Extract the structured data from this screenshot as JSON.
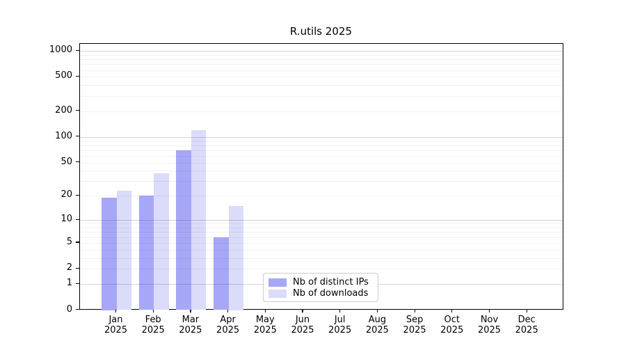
{
  "chart_data": {
    "type": "bar",
    "title": "R.utils 2025",
    "year_label": "2025",
    "months": [
      "Jan",
      "Feb",
      "Mar",
      "Apr",
      "May",
      "Jun",
      "Jul",
      "Aug",
      "Sep",
      "Oct",
      "Nov",
      "Dec"
    ],
    "series": [
      {
        "name": "Nb of distinct IPs",
        "color": "#a7a7f7",
        "values": [
          19,
          20,
          70,
          6,
          0,
          0,
          0,
          0,
          0,
          0,
          0,
          0
        ]
      },
      {
        "name": "Nb of downloads",
        "color": "#dbdbfa",
        "values": [
          23,
          37,
          120,
          15,
          0,
          0,
          0,
          0,
          0,
          0,
          0,
          0
        ]
      }
    ],
    "y_scale": "log1p",
    "y_ticks": [
      0,
      1,
      2,
      5,
      10,
      20,
      50,
      100,
      200,
      500,
      1000
    ],
    "y_minor_gridlines": [
      2,
      3,
      4,
      5,
      6,
      7,
      8,
      9,
      20,
      30,
      40,
      50,
      60,
      70,
      80,
      90,
      200,
      300,
      400,
      500,
      600,
      700,
      800,
      900
    ],
    "y_major_gridlines": [
      1,
      10,
      100,
      1000
    ],
    "ylim": [
      0,
      1200
    ],
    "grid": true,
    "legend_position": "inside-bottom-center"
  }
}
